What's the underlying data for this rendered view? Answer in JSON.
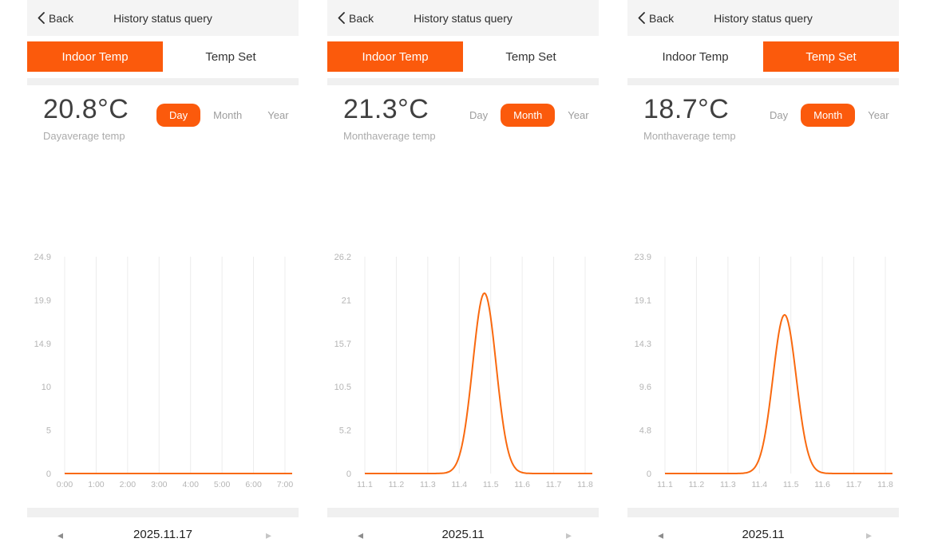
{
  "colors": {
    "accent": "#fb5a0c",
    "chart_line": "#f9690f",
    "grid": "#ececec",
    "axis_text": "#b5b5b5",
    "header_bg": "#f4f4f4"
  },
  "header": {
    "back_label": "Back",
    "title": "History status query"
  },
  "panels": [
    {
      "tabs": [
        {
          "label": "Indoor Temp",
          "active": true
        },
        {
          "label": "Temp Set",
          "active": false
        }
      ],
      "temp_value": "20.8°C",
      "temp_caption": "Dayaverage temp",
      "periods": [
        {
          "label": "Day",
          "active": true
        },
        {
          "label": "Month",
          "active": false
        },
        {
          "label": "Year",
          "active": false
        }
      ],
      "date_nav": {
        "prev_icon": "◂",
        "date": "2025.11.17",
        "next_icon": "▸"
      }
    },
    {
      "tabs": [
        {
          "label": "Indoor Temp",
          "active": true
        },
        {
          "label": "Temp Set",
          "active": false
        }
      ],
      "temp_value": "21.3°C",
      "temp_caption": "Monthaverage temp",
      "periods": [
        {
          "label": "Day",
          "active": false
        },
        {
          "label": "Month",
          "active": true
        },
        {
          "label": "Year",
          "active": false
        }
      ],
      "date_nav": {
        "prev_icon": "◂",
        "date": "2025.11",
        "next_icon": "▸"
      }
    },
    {
      "tabs": [
        {
          "label": "Indoor Temp",
          "active": false
        },
        {
          "label": "Temp Set",
          "active": true
        }
      ],
      "temp_value": "18.7°C",
      "temp_caption": "Monthaverage temp",
      "periods": [
        {
          "label": "Day",
          "active": false
        },
        {
          "label": "Month",
          "active": true
        },
        {
          "label": "Year",
          "active": false
        }
      ],
      "date_nav": {
        "prev_icon": "◂",
        "date": "2025.11",
        "next_icon": "▸"
      }
    }
  ],
  "chart_data": [
    {
      "type": "line",
      "title": "Indoor Temp - Day view 2025.11.17",
      "x_labels": [
        "0:00",
        "1:00",
        "2:00",
        "3:00",
        "4:00",
        "5:00",
        "6:00",
        "7:00"
      ],
      "x_unit_start": 0,
      "x_unit_per_tick": 1,
      "y_tick_labels": [
        "0",
        "5",
        "10",
        "14.9",
        "19.9",
        "24.9"
      ],
      "y_max": 24.9,
      "ylim": [
        0,
        24.9
      ],
      "grid": "vertical-only",
      "legend": "none",
      "series": [
        {
          "name": "Indoor Temp",
          "shape": "flat",
          "baseline": 0,
          "peak": 0,
          "center": 0,
          "sigma": 1
        }
      ]
    },
    {
      "type": "line",
      "title": "Indoor Temp - Month view 2025.11",
      "x_labels": [
        "11.1",
        "11.2",
        "11.3",
        "11.4",
        "11.5",
        "11.6",
        "11.7",
        "11.8"
      ],
      "x_unit_start": 11.1,
      "x_unit_per_tick": 0.1,
      "y_tick_labels": [
        "0",
        "5.2",
        "10.5",
        "15.7",
        "21",
        "26.2"
      ],
      "y_max": 26.2,
      "ylim": [
        0,
        26.2
      ],
      "grid": "vertical-only",
      "legend": "none",
      "series": [
        {
          "name": "Indoor Temp",
          "shape": "gaussian",
          "baseline": 0,
          "peak": 21.8,
          "center": 11.48,
          "sigma": 0.037
        }
      ]
    },
    {
      "type": "line",
      "title": "Temp Set - Month view 2025.11",
      "x_labels": [
        "11.1",
        "11.2",
        "11.3",
        "11.4",
        "11.5",
        "11.6",
        "11.7",
        "11.8"
      ],
      "x_unit_start": 11.1,
      "x_unit_per_tick": 0.1,
      "y_tick_labels": [
        "0",
        "4.8",
        "9.6",
        "14.3",
        "19.1",
        "23.9"
      ],
      "y_max": 23.9,
      "ylim": [
        0,
        23.9
      ],
      "grid": "vertical-only",
      "legend": "none",
      "series": [
        {
          "name": "Temp Set",
          "shape": "gaussian",
          "baseline": 0,
          "peak": 17.5,
          "center": 11.48,
          "sigma": 0.037
        }
      ]
    }
  ]
}
